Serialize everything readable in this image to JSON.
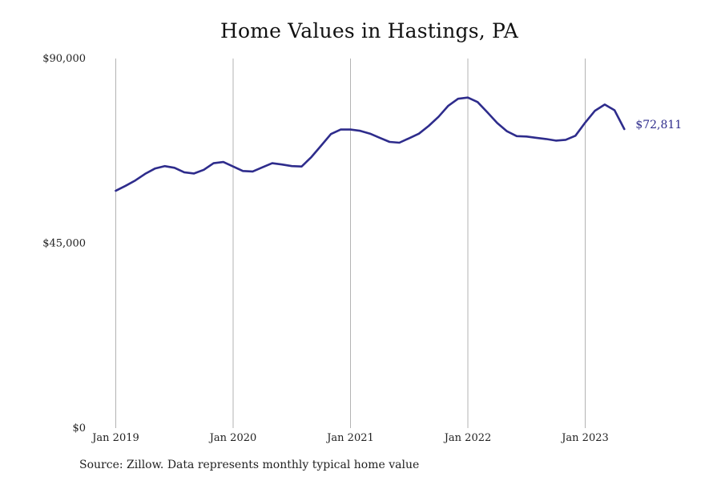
{
  "chart_data": {
    "type": "line",
    "title": "Home Values in Hastings, PA",
    "xlabel": "",
    "ylabel": "",
    "ylim": [
      0,
      90000
    ],
    "y_ticks": [
      0,
      45000,
      90000
    ],
    "y_tick_labels": [
      "$0",
      "$45,000",
      "$90,000"
    ],
    "x_ticks": [
      "2019-01",
      "2020-01",
      "2021-01",
      "2022-01",
      "2023-01"
    ],
    "x_tick_labels": [
      "Jan 2019",
      "Jan 2020",
      "Jan 2021",
      "Jan 2022",
      "Jan 2023"
    ],
    "grid": "vertical lines at each January",
    "line_color": "#2e2c8c",
    "end_label": "$72,811",
    "series": [
      {
        "x": [
          "2019-01",
          "2019-02",
          "2019-03",
          "2019-04",
          "2019-05",
          "2019-06",
          "2019-07",
          "2019-08",
          "2019-09",
          "2019-10",
          "2019-11",
          "2019-12",
          "2020-01",
          "2020-02",
          "2020-03",
          "2020-04",
          "2020-05",
          "2020-06",
          "2020-07",
          "2020-08",
          "2020-09",
          "2020-10",
          "2020-11",
          "2020-12",
          "2021-01",
          "2021-02",
          "2021-03",
          "2021-04",
          "2021-05",
          "2021-06",
          "2021-07",
          "2021-08",
          "2021-09",
          "2021-10",
          "2021-11",
          "2021-12",
          "2022-01",
          "2022-02",
          "2022-03",
          "2022-04",
          "2022-05",
          "2022-06",
          "2022-07",
          "2022-08",
          "2022-09",
          "2022-10",
          "2022-11",
          "2022-12",
          "2023-01",
          "2023-02",
          "2023-03",
          "2023-04",
          "2023-05"
        ],
        "values": [
          57800,
          59000,
          60300,
          61900,
          63200,
          63800,
          63400,
          62300,
          62000,
          62900,
          64500,
          64800,
          63700,
          62600,
          62500,
          63500,
          64500,
          64200,
          63800,
          63700,
          66000,
          68800,
          71600,
          72700,
          72700,
          72400,
          71700,
          70700,
          69700,
          69500,
          70600,
          71700,
          73600,
          75800,
          78500,
          80200,
          80500,
          79400,
          76900,
          74300,
          72300,
          71100,
          71000,
          70700,
          70400,
          70000,
          70200,
          71200,
          74400,
          77300,
          78800,
          77400,
          72811
        ]
      }
    ]
  },
  "source": "Source: Zillow. Data represents monthly typical home value"
}
